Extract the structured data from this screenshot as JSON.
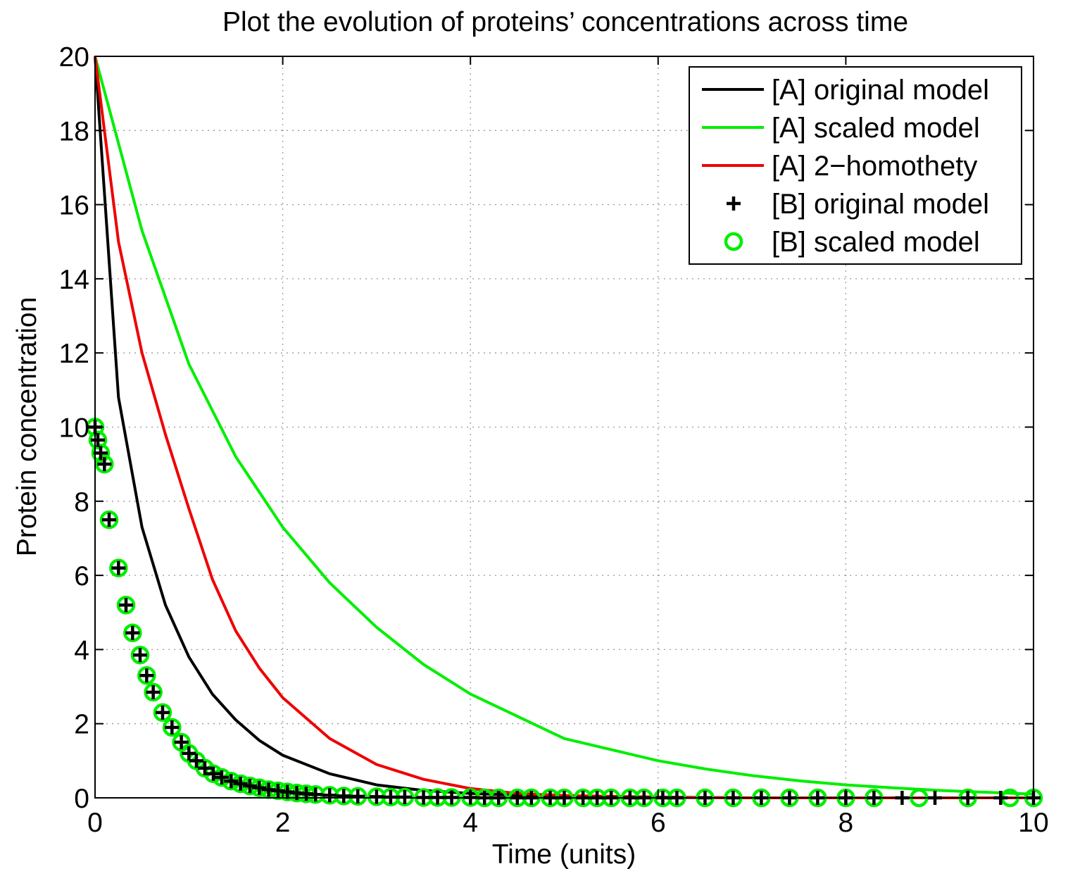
{
  "chart_data": {
    "type": "line",
    "title": "Plot the evolution of proteins’ concentrations across time",
    "xlabel": "Time (units)",
    "ylabel": "Protein concentration",
    "xlim": [
      0,
      10
    ],
    "ylim": [
      0,
      20
    ],
    "xticks": [
      0,
      2,
      4,
      6,
      8,
      10
    ],
    "yticks": [
      0,
      2,
      4,
      6,
      8,
      10,
      12,
      14,
      16,
      18,
      20
    ],
    "xtick_labels": [
      "0",
      "2",
      "4",
      "6",
      "8",
      "10"
    ],
    "ytick_labels": [
      "0",
      "2",
      "4",
      "6",
      "8",
      "10",
      "12",
      "14",
      "16",
      "18",
      "20"
    ],
    "grid": true,
    "legend_position": "top-right",
    "series": [
      {
        "name": "[A] original model",
        "style": "line",
        "color": "#000000",
        "x": [
          0,
          0.25,
          0.5,
          0.75,
          1,
          1.25,
          1.5,
          1.75,
          2,
          2.5,
          3,
          3.5,
          4,
          4.5,
          5,
          6,
          7,
          8,
          9,
          10
        ],
        "y": [
          20,
          10.8,
          7.3,
          5.2,
          3.8,
          2.8,
          2.1,
          1.55,
          1.15,
          0.65,
          0.35,
          0.2,
          0.12,
          0.07,
          0.04,
          0.01,
          0,
          0,
          0,
          0
        ]
      },
      {
        "name": "[A] scaled model",
        "style": "line",
        "color": "#00ee00",
        "x": [
          0,
          0.5,
          1,
          1.5,
          2,
          2.5,
          3,
          3.5,
          4,
          4.5,
          5,
          5.5,
          6,
          6.5,
          7,
          7.5,
          8,
          8.5,
          9,
          9.5,
          10
        ],
        "y": [
          20,
          15.3,
          11.7,
          9.2,
          7.3,
          5.8,
          4.6,
          3.6,
          2.8,
          2.2,
          1.6,
          1.3,
          1.0,
          0.78,
          0.6,
          0.46,
          0.35,
          0.27,
          0.2,
          0.15,
          0.1
        ]
      },
      {
        "name": "[A] 2−homothety",
        "style": "line",
        "color": "#ee0000",
        "x": [
          0,
          0.25,
          0.5,
          0.75,
          1,
          1.25,
          1.5,
          1.75,
          2,
          2.5,
          3,
          3.5,
          4,
          4.5,
          5,
          6,
          7,
          8,
          9,
          10
        ],
        "y": [
          20,
          15.0,
          12.0,
          9.8,
          7.8,
          5.9,
          4.5,
          3.5,
          2.7,
          1.6,
          0.9,
          0.5,
          0.25,
          0.12,
          0.06,
          0.02,
          0,
          0,
          0,
          0
        ]
      },
      {
        "name": "[B] original model",
        "style": "marker-plus",
        "color": "#000000",
        "x": [
          0,
          0.03,
          0.06,
          0.1,
          0.15,
          0.25,
          0.33,
          0.4,
          0.48,
          0.55,
          0.62,
          0.72,
          0.82,
          0.92,
          1.0,
          1.08,
          1.17,
          1.26,
          1.35,
          1.45,
          1.55,
          1.65,
          1.75,
          1.85,
          1.95,
          2.05,
          2.15,
          2.25,
          2.35,
          2.5,
          2.65,
          2.8,
          3.0,
          3.15,
          3.3,
          3.5,
          3.65,
          3.8,
          4.0,
          4.15,
          4.3,
          4.5,
          4.65,
          4.85,
          5.0,
          5.2,
          5.35,
          5.5,
          5.7,
          5.85,
          6.05,
          6.2,
          6.5,
          6.8,
          7.1,
          7.4,
          7.7,
          8.0,
          8.3,
          8.6,
          8.95,
          9.3,
          9.65,
          10.0
        ],
        "y": [
          10.0,
          9.65,
          9.3,
          9.0,
          7.5,
          6.2,
          5.2,
          4.45,
          3.85,
          3.3,
          2.85,
          2.3,
          1.9,
          1.5,
          1.2,
          1.0,
          0.8,
          0.65,
          0.55,
          0.45,
          0.38,
          0.32,
          0.27,
          0.22,
          0.19,
          0.16,
          0.13,
          0.11,
          0.09,
          0.07,
          0.05,
          0.04,
          0.03,
          0.02,
          0.02,
          0.01,
          0.01,
          0.01,
          0.01,
          0,
          0,
          0,
          0,
          0,
          0,
          0,
          0,
          0,
          0,
          0,
          0,
          0,
          0,
          0,
          0,
          0,
          0,
          0,
          0,
          0,
          0,
          0,
          0,
          0
        ]
      },
      {
        "name": "[B] scaled model",
        "style": "marker-circle",
        "color": "#00ee00",
        "x": [
          0,
          0.03,
          0.06,
          0.1,
          0.15,
          0.25,
          0.33,
          0.4,
          0.48,
          0.55,
          0.62,
          0.72,
          0.82,
          0.92,
          1.0,
          1.08,
          1.17,
          1.26,
          1.35,
          1.45,
          1.55,
          1.65,
          1.75,
          1.85,
          1.95,
          2.05,
          2.15,
          2.25,
          2.35,
          2.5,
          2.65,
          2.8,
          3.0,
          3.15,
          3.3,
          3.5,
          3.65,
          3.8,
          4.0,
          4.15,
          4.3,
          4.5,
          4.65,
          4.85,
          5.0,
          5.2,
          5.35,
          5.5,
          5.7,
          5.85,
          6.05,
          6.2,
          6.5,
          6.8,
          7.1,
          7.4,
          7.7,
          8.0,
          8.3,
          8.78,
          9.3,
          9.75,
          10.0
        ],
        "y": [
          10.0,
          9.65,
          9.3,
          9.0,
          7.5,
          6.2,
          5.2,
          4.45,
          3.85,
          3.3,
          2.85,
          2.3,
          1.9,
          1.5,
          1.2,
          1.0,
          0.8,
          0.65,
          0.55,
          0.45,
          0.38,
          0.32,
          0.27,
          0.22,
          0.19,
          0.16,
          0.13,
          0.11,
          0.09,
          0.07,
          0.05,
          0.04,
          0.03,
          0.02,
          0.02,
          0.01,
          0.01,
          0.01,
          0.01,
          0,
          0,
          0,
          0,
          0,
          0,
          0,
          0,
          0,
          0,
          0,
          0,
          0,
          0,
          0,
          0,
          0,
          0,
          0,
          0,
          0,
          0,
          0,
          0
        ]
      }
    ]
  }
}
